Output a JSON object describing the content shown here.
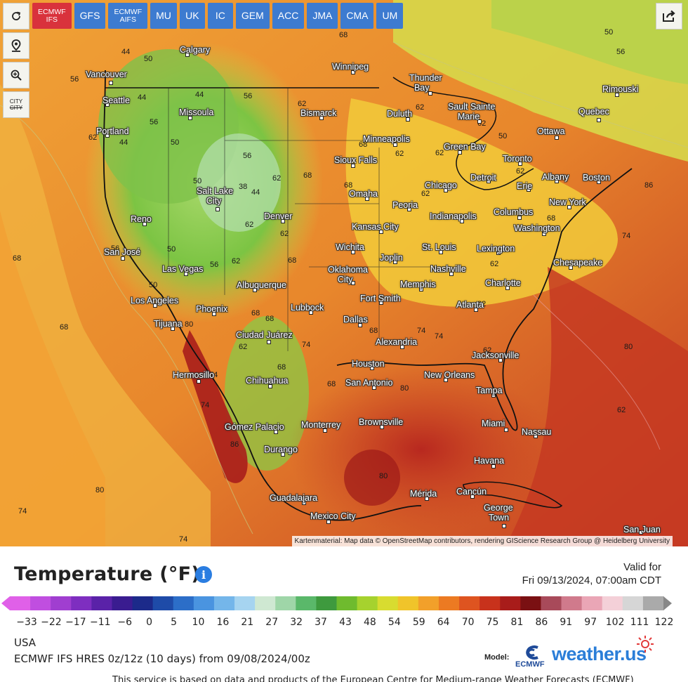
{
  "toolbar": {
    "tabs": [
      {
        "label_line1": "ECMWF",
        "label_line2": "IFS",
        "active": true
      },
      {
        "label_line1": "GFS",
        "label_line2": "",
        "active": false
      },
      {
        "label_line1": "ECMWF",
        "label_line2": "AIFS",
        "active": false
      },
      {
        "label_line1": "MU",
        "label_line2": "",
        "active": false
      },
      {
        "label_line1": "UK",
        "label_line2": "",
        "active": false
      },
      {
        "label_line1": "IC",
        "label_line2": "",
        "active": false
      },
      {
        "label_line1": "GEM",
        "label_line2": "",
        "active": false
      },
      {
        "label_line1": "ACC",
        "label_line2": "",
        "active": false
      },
      {
        "label_line1": "JMA",
        "label_line2": "",
        "active": false
      },
      {
        "label_line1": "CMA",
        "label_line2": "",
        "active": false
      },
      {
        "label_line1": "UM",
        "label_line2": "",
        "active": false
      }
    ],
    "reload_icon": "reload-icon",
    "location_icon": "location-pin-icon",
    "zoom_icon": "zoom-icon",
    "city_toggle_line1": "CITY",
    "city_toggle_line2": "CITY",
    "share_icon": "share-icon"
  },
  "map": {
    "cities": [
      {
        "name": "Calgary"
      },
      {
        "name": "Vancouver"
      },
      {
        "name": "Seattle"
      },
      {
        "name": "Missoula"
      },
      {
        "name": "Portland"
      },
      {
        "name": "Winnipeg"
      },
      {
        "name": "Thunder Bay"
      },
      {
        "name": "Bismarck"
      },
      {
        "name": "Duluth"
      },
      {
        "name": "Sault Sainte Marie"
      },
      {
        "name": "Rimouski"
      },
      {
        "name": "Quebec"
      },
      {
        "name": "Ottawa"
      },
      {
        "name": "Minneapolis"
      },
      {
        "name": "Green Bay"
      },
      {
        "name": "Toronto"
      },
      {
        "name": "Sioux Falls"
      },
      {
        "name": "Detroit"
      },
      {
        "name": "Albany"
      },
      {
        "name": "Boston"
      },
      {
        "name": "Chicago"
      },
      {
        "name": "Erie"
      },
      {
        "name": "Salt Lake City"
      },
      {
        "name": "Omaha"
      },
      {
        "name": "Peoria"
      },
      {
        "name": "New York"
      },
      {
        "name": "Reno"
      },
      {
        "name": "Denver"
      },
      {
        "name": "Indianapolis"
      },
      {
        "name": "Columbus"
      },
      {
        "name": "Kansas City"
      },
      {
        "name": "Washington"
      },
      {
        "name": "San José"
      },
      {
        "name": "Wichita"
      },
      {
        "name": "St. Louis"
      },
      {
        "name": "Lexington"
      },
      {
        "name": "Joplin"
      },
      {
        "name": "Las Vegas"
      },
      {
        "name": "Chesapeake"
      },
      {
        "name": "Oklahoma City"
      },
      {
        "name": "Nashville"
      },
      {
        "name": "Albuquerque"
      },
      {
        "name": "Memphis"
      },
      {
        "name": "Charlotte"
      },
      {
        "name": "Los Angeles"
      },
      {
        "name": "Fort Smith"
      },
      {
        "name": "Atlanta"
      },
      {
        "name": "Phoenix"
      },
      {
        "name": "Lubbock"
      },
      {
        "name": "Tijuana"
      },
      {
        "name": "Dallas"
      },
      {
        "name": "Ciudad Juárez"
      },
      {
        "name": "Alexandria"
      },
      {
        "name": "Jacksonville"
      },
      {
        "name": "Houston"
      },
      {
        "name": "Hermosillo"
      },
      {
        "name": "New Orleans"
      },
      {
        "name": "Chihuahua"
      },
      {
        "name": "San Antonio"
      },
      {
        "name": "Tampa"
      },
      {
        "name": "Brownsville"
      },
      {
        "name": "Miami"
      },
      {
        "name": "Nassau"
      },
      {
        "name": "Gómez Palacio"
      },
      {
        "name": "Monterrey"
      },
      {
        "name": "Durango"
      },
      {
        "name": "Havana"
      },
      {
        "name": "Cancún"
      },
      {
        "name": "Mérida"
      },
      {
        "name": "Guadalajara"
      },
      {
        "name": "George Town"
      },
      {
        "name": "Mexico City"
      },
      {
        "name": "San Juan"
      }
    ],
    "isotherm_labels": [
      "68",
      "50",
      "56",
      "44",
      "50",
      "56",
      "44",
      "44",
      "56",
      "62",
      "62",
      "44",
      "56",
      "62",
      "50",
      "50",
      "38",
      "44",
      "56",
      "62",
      "68",
      "68",
      "62",
      "62",
      "68",
      "62",
      "62",
      "50",
      "50",
      "62",
      "68",
      "62",
      "62",
      "74",
      "68",
      "68",
      "56",
      "50",
      "56",
      "68",
      "62",
      "68",
      "62",
      "74",
      "68",
      "80",
      "74",
      "62",
      "74",
      "74",
      "68",
      "80",
      "68",
      "62",
      "68",
      "86",
      "62",
      "74",
      "86",
      "80",
      "74",
      "74",
      "62",
      "80",
      "80"
    ],
    "attribution": "Kartenmaterial: Map data © OpenStreetMap contributors, rendering GIScience Research Group @ Heidelberg University"
  },
  "legend": {
    "title": "Temperature (°F)",
    "info_icon": "info-icon",
    "valid_label": "Valid for",
    "valid_date": "Fri 09/13/2024, 07:00am CDT",
    "ticks": [
      "−33",
      "−22",
      "−17",
      "−11",
      "−6",
      "0",
      "5",
      "10",
      "16",
      "21",
      "27",
      "32",
      "37",
      "43",
      "48",
      "54",
      "59",
      "64",
      "70",
      "75",
      "81",
      "86",
      "91",
      "97",
      "102",
      "111",
      "122"
    ],
    "region": "USA",
    "run_info": "ECMWF IFS HRES 0z/12z (10 days) from 09/08/2024/00z",
    "model_label": "Model:",
    "ecmwf_logo_text": "ECMWF",
    "brand": "weather.us",
    "footnote": "This service is based on data and products of the European Centre for Medium-range Weather Forecasts (ECMWF)"
  },
  "colors": {
    "active_tab": "#d9323c",
    "tab": "#3d7bd0",
    "brand_blue": "#2b7ed8"
  }
}
